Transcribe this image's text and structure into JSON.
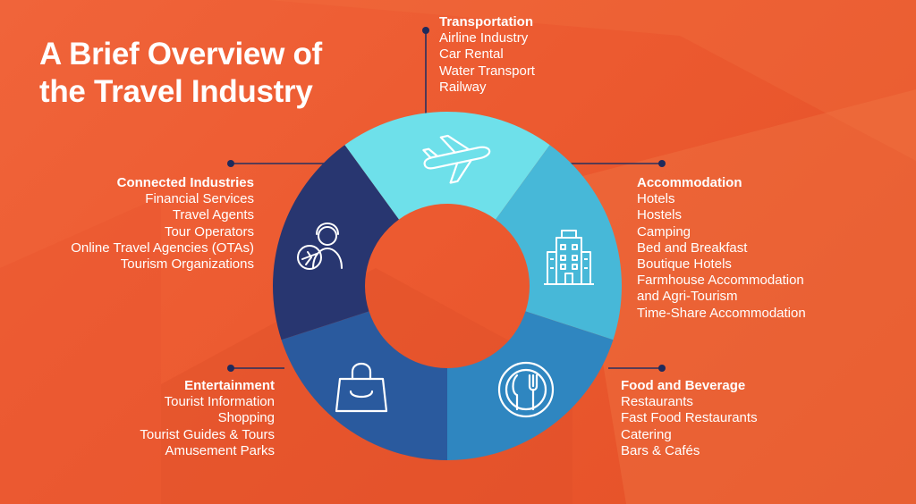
{
  "title": {
    "line1": "A Brief Overview of",
    "line2": "the Travel Industry"
  },
  "colors": {
    "background": "#ec5a30",
    "transportation": "#6ee0ea",
    "accommodation": "#47b8d8",
    "food_and_beverage": "#2f86c0",
    "entertainment": "#2a5a9e",
    "connected_industries": "#283670",
    "connector": "#27305f"
  },
  "categories": {
    "transportation": {
      "heading": "Transportation",
      "icon": "airplane-icon",
      "items": [
        "Airline Industry",
        "Car Rental",
        "Water Transport",
        "Railway"
      ]
    },
    "accommodation": {
      "heading": "Accommodation",
      "icon": "hotel-building-icon",
      "items": [
        "Hotels",
        "Hostels",
        "Camping",
        "Bed and Breakfast",
        "Boutique Hotels",
        "Farmhouse Accommodation",
        "and Agri-Tourism",
        "Time-Share Accommodation"
      ]
    },
    "food_and_beverage": {
      "heading": "Food and Beverage",
      "icon": "plate-fork-knife-icon",
      "items": [
        "Restaurants",
        "Fast Food Restaurants",
        "Catering",
        "Bars & Cafés"
      ]
    },
    "entertainment": {
      "heading": "Entertainment",
      "icon": "shopping-bag-icon",
      "items": [
        "Tourist Information",
        "Shopping",
        "Tourist Guides & Tours",
        "Amusement Parks"
      ]
    },
    "connected_industries": {
      "heading": "Connected Industries",
      "icon": "travel-agent-icon",
      "items": [
        "Financial Services",
        "Travel Agents",
        "Tour Operators",
        "Online Travel Agencies (OTAs)",
        "Tourism Organizations"
      ]
    }
  }
}
